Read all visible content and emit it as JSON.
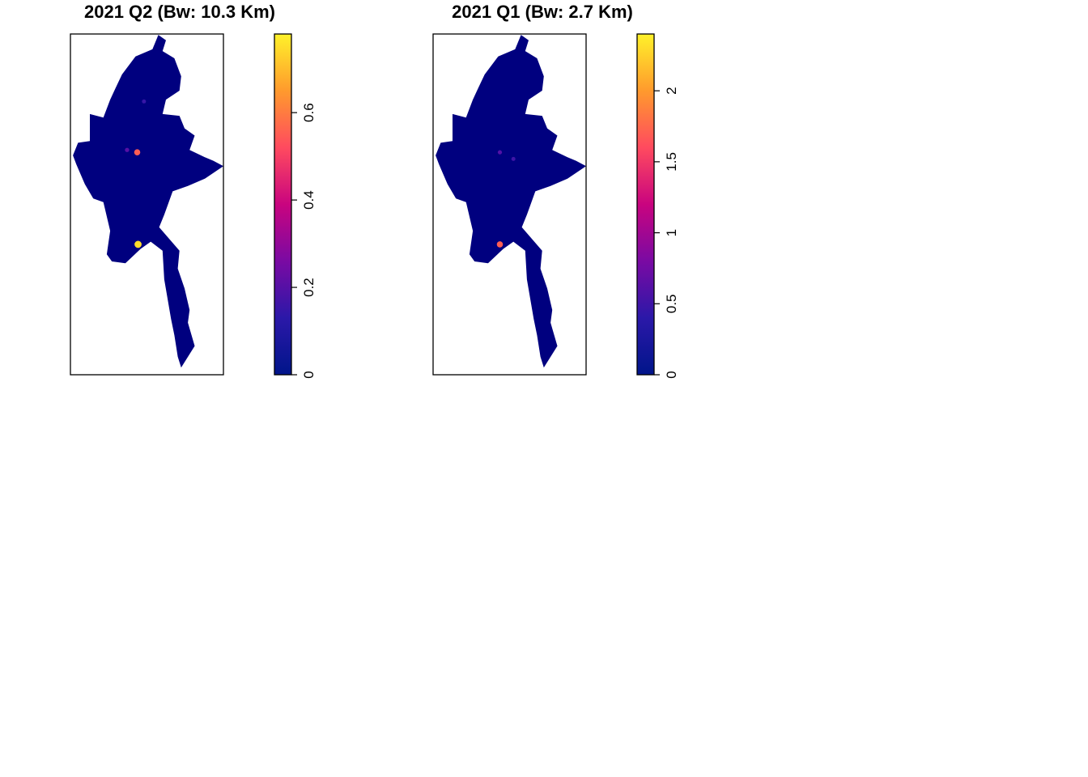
{
  "chart_data": [
    {
      "type": "heatmap",
      "title": "2021 Q2 (Bw: 10.3 Km)",
      "background_color": "#00007f",
      "color_scale": {
        "palette": "plasma-like (navy → purple → magenta → orange → yellow)",
        "colors": [
          "#00158a",
          "#2b18a8",
          "#7a0aa3",
          "#c9047f",
          "#ff4a5f",
          "#ff9a2d",
          "#fff22a"
        ],
        "range": [
          0,
          0.78
        ],
        "ticks": [
          "0",
          "0.2",
          "0.4",
          "0.6"
        ],
        "tick_values": [
          0,
          0.2,
          0.4,
          0.6
        ]
      },
      "hotspots": [
        {
          "lon": 96.1,
          "lat": 21.97,
          "value": 0.55
        },
        {
          "lon": 96.15,
          "lat": 16.85,
          "value": 0.75
        },
        {
          "lon": 95.5,
          "lat": 22.1,
          "value": 0.2
        },
        {
          "lon": 96.5,
          "lat": 24.8,
          "value": 0.15
        }
      ]
    },
    {
      "type": "heatmap",
      "title": "2021 Q1 (Bw: 2.7 Km)",
      "background_color": "#00007f",
      "color_scale": {
        "palette": "plasma-like (navy → purple → magenta → orange → yellow)",
        "colors": [
          "#00158a",
          "#2b18a8",
          "#7a0aa3",
          "#c9047f",
          "#ff4a5f",
          "#ff9a2d",
          "#fff22a"
        ],
        "range": [
          0,
          2.4
        ],
        "ticks": [
          "0",
          "0.5",
          "1",
          "1.5",
          "2"
        ],
        "tick_values": [
          0,
          0.5,
          1,
          1.5,
          2
        ]
      },
      "hotspots": [
        {
          "lon": 96.1,
          "lat": 16.85,
          "value": 1.7
        },
        {
          "lon": 96.1,
          "lat": 21.97,
          "value": 0.6
        },
        {
          "lon": 96.9,
          "lat": 21.6,
          "value": 0.5
        }
      ]
    }
  ]
}
